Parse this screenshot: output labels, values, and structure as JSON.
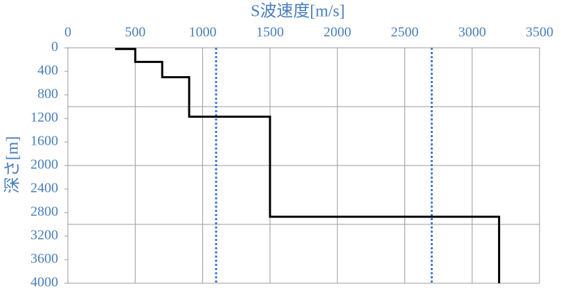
{
  "chart_data": {
    "type": "line",
    "x_axis_label": "S波速度[m/s]",
    "y_axis_label": "深さ[m]",
    "xlim": [
      0,
      3500
    ],
    "xticks": [
      0,
      500,
      1000,
      1500,
      2000,
      2500,
      3000,
      3500
    ],
    "ylim": [
      0,
      4000
    ],
    "yticks": [
      0,
      400,
      800,
      1200,
      1600,
      2000,
      2400,
      2800,
      3200,
      3600,
      4000
    ],
    "y_inverted": true,
    "grid": true,
    "y_gridlines": [
      1000,
      2000,
      3000,
      4000
    ],
    "series": [
      {
        "color": "#000000",
        "x": [
          350,
          500,
          500,
          700,
          700,
          900,
          900,
          1500,
          1500,
          3200,
          3200
        ],
        "y": [
          20,
          20,
          240,
          240,
          500,
          500,
          1170,
          1170,
          2870,
          2870,
          4000
        ]
      }
    ],
    "reference_lines": [
      {
        "x": 1100,
        "color": "#3a78d8"
      },
      {
        "x": 2700,
        "color": "#3a78d8"
      }
    ]
  }
}
